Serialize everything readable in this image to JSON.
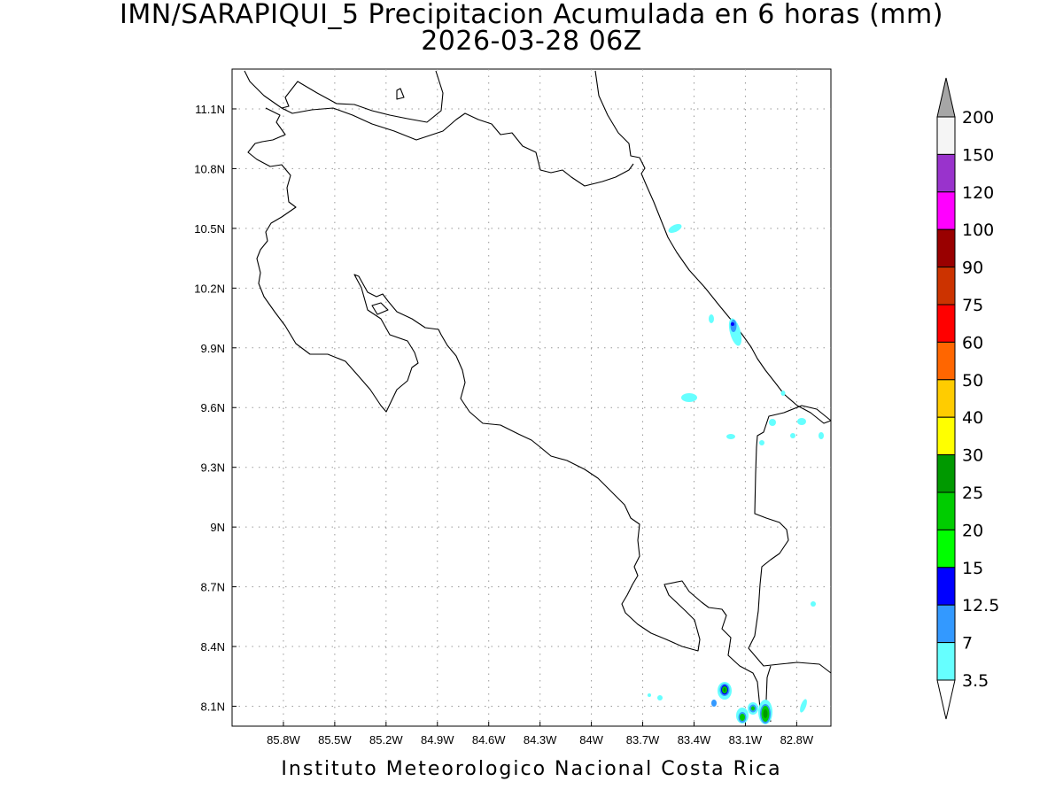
{
  "title": {
    "line1": "IMN/SARAPIQUI_5 Precipitacion Acumulada en 6 horas (mm)",
    "line2": "2026-03-28 06Z"
  },
  "footer": "Instituto Meteorologico Nacional Costa Rica",
  "map": {
    "lon_range": [
      -86.1,
      -82.6
    ],
    "lat_range": [
      8.0,
      11.3
    ],
    "lon_ticks": [
      "85.8W",
      "85.5W",
      "85.2W",
      "84.9W",
      "84.6W",
      "84.3W",
      "84W",
      "83.7W",
      "83.4W",
      "83.1W",
      "82.8W"
    ],
    "lat_ticks": [
      "11.1N",
      "10.8N",
      "10.5N",
      "10.2N",
      "9.9N",
      "9.6N",
      "9.3N",
      "9N",
      "8.7N",
      "8.4N",
      "8.1N"
    ],
    "grid": "dotted",
    "coastline_color": "#000000"
  },
  "colorbar": {
    "labels": [
      "3.5",
      "7",
      "12.5",
      "15",
      "20",
      "25",
      "30",
      "40",
      "50",
      "60",
      "75",
      "90",
      "100",
      "120",
      "150",
      "200"
    ],
    "colors": [
      "#66ffff",
      "#3399ff",
      "#0000ff",
      "#00ff00",
      "#00cc00",
      "#009900",
      "#ffff00",
      "#ffcc00",
      "#ff6600",
      "#ff0000",
      "#cc3300",
      "#990000",
      "#ff00ff",
      "#9933cc",
      "#f5f5f5",
      "#a6a6a6"
    ],
    "low_end_color": "#ffffff"
  }
}
